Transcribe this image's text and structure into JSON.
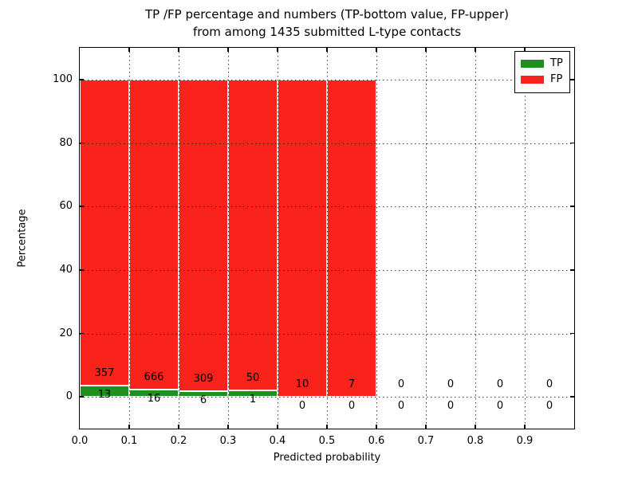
{
  "chart_data": {
    "type": "bar",
    "stacked": true,
    "title_line1": "TP /FP percentage and numbers (TP-bottom value, FP-upper)",
    "title_line2": "from among 1435 submitted L-type contacts",
    "xlabel": "Predicted probability",
    "ylabel": "Percentage",
    "xlim": [
      0.0,
      1.0
    ],
    "ylim": [
      -10,
      110
    ],
    "xtick_labels": [
      "0.0",
      "0.1",
      "0.2",
      "0.3",
      "0.4",
      "0.5",
      "0.6",
      "0.7",
      "0.8",
      "0.9"
    ],
    "ytick_labels": [
      "0",
      "20",
      "40",
      "60",
      "80",
      "100"
    ],
    "ytick_values": [
      0,
      20,
      40,
      60,
      80,
      100
    ],
    "grid": true,
    "grid_style": "dotted",
    "bin_width": 0.1,
    "bin_starts": [
      0.0,
      0.1,
      0.2,
      0.3,
      0.4,
      0.5,
      0.6,
      0.7,
      0.8,
      0.9
    ],
    "series": [
      {
        "name": "TP",
        "color": "#1f8f1f",
        "values": [
          13,
          16,
          6,
          1,
          0,
          0,
          0,
          0,
          0,
          0
        ]
      },
      {
        "name": "FP",
        "color": "#f9231b",
        "values": [
          357,
          666,
          309,
          50,
          10,
          7,
          0,
          0,
          0,
          0
        ]
      }
    ],
    "bar_semantics": "each drawn bar spans 0-100% split as TP%=TP/(TP+FP); labels show raw counts, FP above TP",
    "legend": {
      "position": "upper right",
      "entries": [
        {
          "label": "TP",
          "color": "#1f8f1f"
        },
        {
          "label": "FP",
          "color": "#f9231b"
        }
      ]
    }
  }
}
